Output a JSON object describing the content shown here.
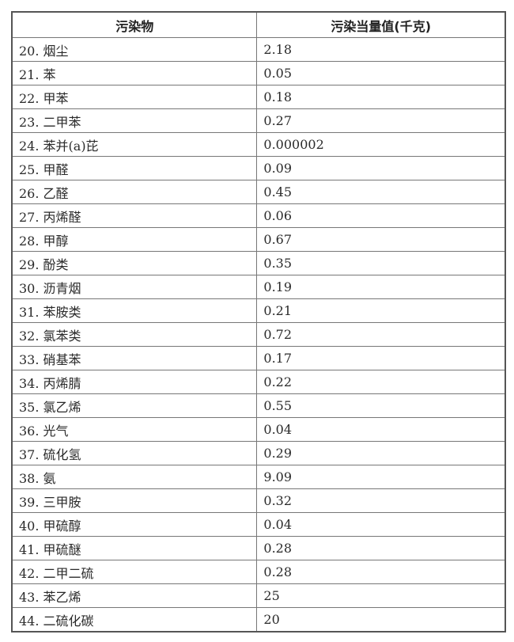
{
  "table": {
    "headers": [
      "污染物",
      "污染当量值(千克)"
    ],
    "rows": [
      [
        "20. 烟尘",
        "2.18"
      ],
      [
        "21. 苯",
        "0.05"
      ],
      [
        "22. 甲苯",
        "0.18"
      ],
      [
        "23. 二甲苯",
        "0.27"
      ],
      [
        "24. 苯并(a)芘",
        "0.000002"
      ],
      [
        "25. 甲醛",
        "0.09"
      ],
      [
        "26. 乙醛",
        "0.45"
      ],
      [
        "27. 丙烯醛",
        "0.06"
      ],
      [
        "28. 甲醇",
        "0.67"
      ],
      [
        "29. 酚类",
        "0.35"
      ],
      [
        "30. 沥青烟",
        "0.19"
      ],
      [
        "31. 苯胺类",
        "0.21"
      ],
      [
        "32. 氯苯类",
        "0.72"
      ],
      [
        "33. 硝基苯",
        "0.17"
      ],
      [
        "34. 丙烯腈",
        "0.22"
      ],
      [
        "35. 氯乙烯",
        "0.55"
      ],
      [
        "36. 光气",
        "0.04"
      ],
      [
        "37. 硫化氢",
        "0.29"
      ],
      [
        "38. 氨",
        "9.09"
      ],
      [
        "39. 三甲胺",
        "0.32"
      ],
      [
        "40. 甲硫醇",
        "0.04"
      ],
      [
        "41. 甲硫醚",
        "0.28"
      ],
      [
        "42. 二甲二硫",
        "0.28"
      ],
      [
        "43. 苯乙烯",
        "25"
      ],
      [
        "44. 二硫化碳",
        "20"
      ]
    ]
  }
}
